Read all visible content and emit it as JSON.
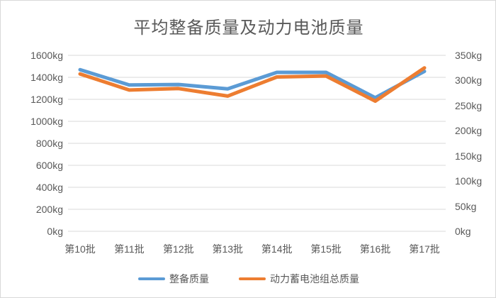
{
  "title": "平均整备质量及动力电池质量",
  "colors": {
    "series1": "#5B9BD5",
    "series2": "#ED7D31",
    "grid": "#D9D9D9",
    "text": "#595959",
    "border": "#D9D9D9",
    "background": "#FFFFFF"
  },
  "chart_data": {
    "type": "line",
    "title": "平均整备质量及动力电池质量",
    "categories": [
      "第10批",
      "第11批",
      "第12批",
      "第13批",
      "第14批",
      "第15批",
      "第16批",
      "第17批"
    ],
    "series": [
      {
        "name": "整备质量",
        "axis": "left",
        "color": "#5B9BD5",
        "values": [
          1470,
          1330,
          1335,
          1295,
          1445,
          1445,
          1215,
          1455
        ]
      },
      {
        "name": "动力蓄电池组总质量",
        "axis": "right",
        "color": "#ED7D31",
        "values": [
          313,
          281,
          284,
          269,
          307,
          309,
          259,
          325
        ]
      }
    ],
    "left_axis": {
      "min": 0,
      "max": 1600,
      "step": 200,
      "unit": "kg",
      "ticks_top_to_bottom": [
        "1600kg",
        "1400kg",
        "1200kg",
        "1000kg",
        "800kg",
        "600kg",
        "400kg",
        "200kg",
        "0kg"
      ]
    },
    "right_axis": {
      "min": 0,
      "max": 350,
      "step": 50,
      "unit": "kg",
      "ticks_top_to_bottom": [
        "350kg",
        "300kg",
        "250kg",
        "200kg",
        "150kg",
        "100kg",
        "50kg",
        "0kg"
      ]
    },
    "grid": true,
    "legend_position": "bottom"
  }
}
